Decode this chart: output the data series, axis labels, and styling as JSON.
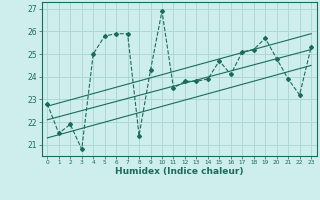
{
  "title": "",
  "xlabel": "Humidex (Indice chaleur)",
  "ylabel": "",
  "bg_color": "#ceeeed",
  "grid_color": "#aed8d4",
  "line_color": "#1a6b5a",
  "xlim": [
    -0.5,
    23.5
  ],
  "ylim": [
    20.5,
    27.3
  ],
  "yticks": [
    21,
    22,
    23,
    24,
    25,
    26,
    27
  ],
  "xticks": [
    0,
    1,
    2,
    3,
    4,
    5,
    6,
    7,
    8,
    9,
    10,
    11,
    12,
    13,
    14,
    15,
    16,
    17,
    18,
    19,
    20,
    21,
    22,
    23
  ],
  "data_x": [
    0,
    1,
    2,
    3,
    4,
    5,
    6,
    7,
    8,
    9,
    10,
    11,
    12,
    13,
    14,
    15,
    16,
    17,
    18,
    19,
    20,
    21,
    22,
    23
  ],
  "data_y": [
    22.8,
    21.5,
    21.9,
    20.8,
    25.0,
    25.8,
    25.9,
    25.9,
    21.4,
    24.3,
    26.9,
    23.5,
    23.8,
    23.8,
    23.9,
    24.7,
    24.1,
    25.1,
    25.2,
    25.7,
    24.8,
    23.9,
    23.2,
    25.3
  ],
  "trend_lines": [
    {
      "x": [
        0,
        23
      ],
      "y": [
        21.3,
        24.5
      ]
    },
    {
      "x": [
        0,
        23
      ],
      "y": [
        22.1,
        25.2
      ]
    },
    {
      "x": [
        0,
        23
      ],
      "y": [
        22.7,
        25.9
      ]
    }
  ]
}
